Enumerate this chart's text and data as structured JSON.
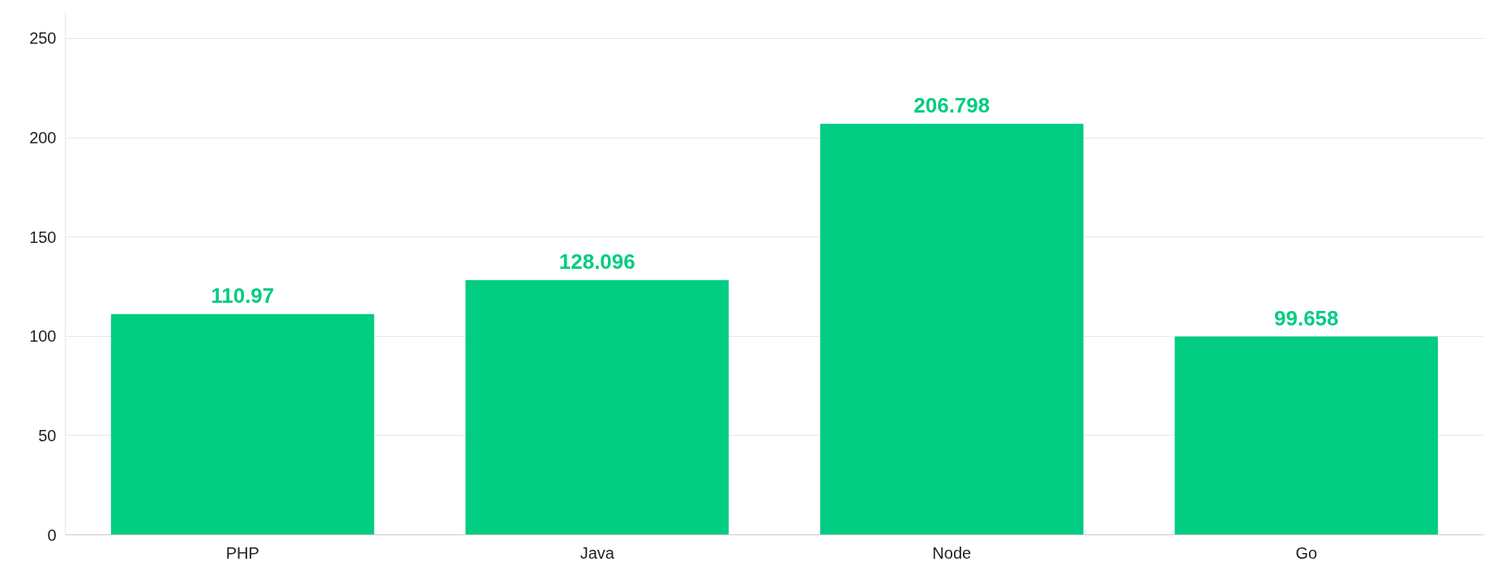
{
  "chart_data": {
    "type": "bar",
    "categories": [
      "PHP",
      "Java",
      "Node",
      "Go"
    ],
    "values": [
      110.97,
      128.096,
      206.798,
      99.658
    ],
    "color": "#00cc82",
    "data_labels": true,
    "ylim": [
      0,
      263
    ],
    "yticks": [
      0,
      50,
      100,
      150,
      200,
      250
    ],
    "grid": "y"
  }
}
